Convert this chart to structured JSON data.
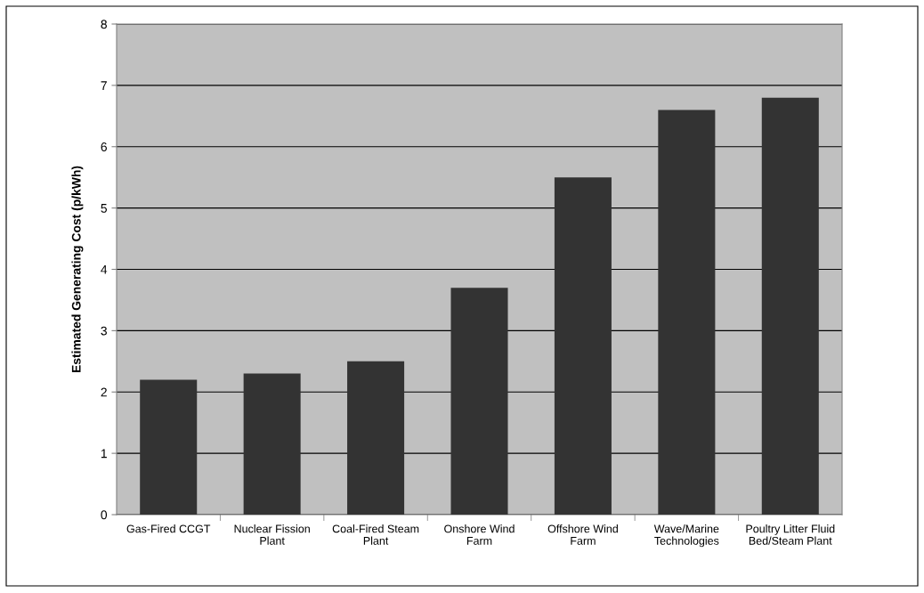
{
  "chart_data": {
    "type": "bar",
    "categories": [
      "Gas-Fired CCGT",
      "Nuclear Fission\nPlant",
      "Coal-Fired Steam\nPlant",
      "Onshore Wind\nFarm",
      "Offshore Wind\nFarm",
      "Wave/Marine\nTechnologies",
      "Poultry Litter Fluid\nBed/Steam Plant"
    ],
    "values": [
      2.2,
      2.3,
      2.5,
      3.7,
      5.5,
      6.6,
      6.8
    ],
    "color": "#333333",
    "ylabel": "Estimated Generating Cost (p/kWh)",
    "ylim": [
      0,
      8
    ],
    "yticks": [
      0,
      1,
      2,
      3,
      4,
      5,
      6,
      7,
      8
    ],
    "grid": "y",
    "legend": false
  }
}
